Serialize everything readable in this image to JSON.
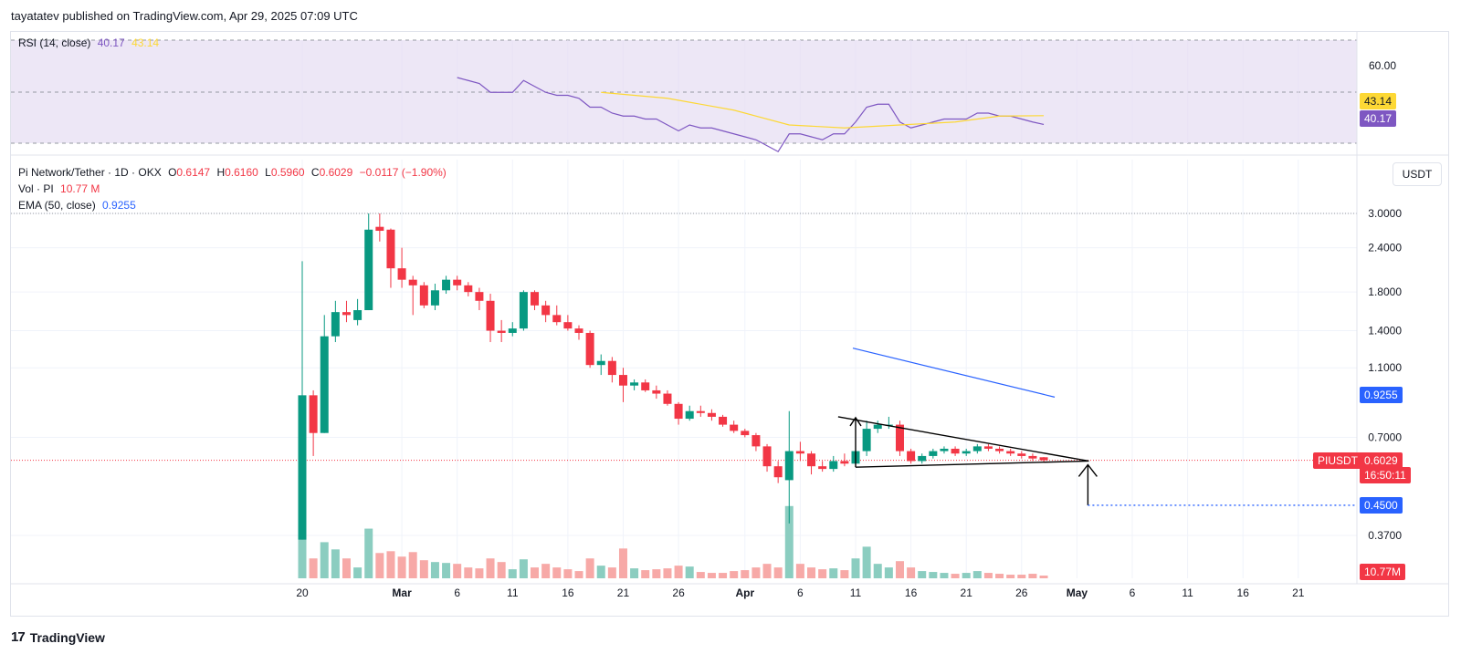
{
  "header": {
    "publisher": "tayatatev published on TradingView.com, Apr 29, 2025 07:09 UTC"
  },
  "rsi_legend": {
    "name": "RSI (14, close)",
    "rsi": "40.17",
    "ma": "43.14"
  },
  "price_legend": {
    "symbol": "Pi Network/Tether · 1D · OKX",
    "o_label": "O",
    "o": "0.6147",
    "h_label": "H",
    "h": "0.6160",
    "l_label": "L",
    "l": "0.5960",
    "c_label": "C",
    "c": "0.6029",
    "change": "−0.0117 (−1.90%)",
    "vol_label": "Vol · PI",
    "vol": "10.77 M",
    "ema_label": "EMA (50, close)",
    "ema": "0.9255"
  },
  "unit": "USDT",
  "footer": {
    "brand": "TradingView"
  },
  "colors": {
    "up": "#089981",
    "down": "#f23645",
    "ema": "#2962ff",
    "rsi": "#7e57c2",
    "rsi_ma": "#fdd835",
    "rsi_bg": "#ede7f6",
    "target": "#2962ff"
  },
  "chart_data": {
    "type": "candlestick",
    "symbol": "PIUSDT",
    "scale": "log",
    "price_ticks": [
      "3.0000",
      "2.4000",
      "1.8000",
      "1.4000",
      "1.1000",
      "0.7000",
      "0.3700"
    ],
    "rsi_ticks": [
      "60.00"
    ],
    "x_ticks": [
      "20",
      "Mar",
      "6",
      "11",
      "16",
      "21",
      "26",
      "Apr",
      "6",
      "11",
      "16",
      "21",
      "26",
      "May",
      "6",
      "11",
      "16",
      "21"
    ],
    "price_labels": {
      "ema": "0.9255",
      "symbol_tag": "PIUSDT",
      "last": "0.6029",
      "countdown": "16:50:11",
      "target": "0.4500",
      "volume": "10.77M",
      "rsi": "40.17",
      "rsi_ma": "43.14"
    },
    "candles": [
      {
        "date": "Feb 20",
        "o": 0.36,
        "h": 2.2,
        "l": 0.36,
        "c": 0.92,
        "v": 100
      },
      {
        "date": "Feb 21",
        "o": 0.92,
        "h": 0.95,
        "l": 0.62,
        "c": 0.72,
        "v": 22
      },
      {
        "date": "Feb 22",
        "o": 0.72,
        "h": 1.55,
        "l": 0.72,
        "c": 1.35,
        "v": 40
      },
      {
        "date": "Feb 23",
        "o": 1.35,
        "h": 1.7,
        "l": 1.3,
        "c": 1.58,
        "v": 32
      },
      {
        "date": "Feb 24",
        "o": 1.58,
        "h": 1.7,
        "l": 1.48,
        "c": 1.55,
        "v": 22
      },
      {
        "date": "Feb 25",
        "o": 1.5,
        "h": 1.72,
        "l": 1.45,
        "c": 1.6,
        "v": 12
      },
      {
        "date": "Feb 26",
        "o": 1.6,
        "h": 3.0,
        "l": 1.6,
        "c": 2.7,
        "v": 55
      },
      {
        "date": "Feb 27",
        "o": 2.75,
        "h": 3.0,
        "l": 2.5,
        "c": 2.68,
        "v": 28
      },
      {
        "date": "Feb 28",
        "o": 2.7,
        "h": 2.72,
        "l": 1.85,
        "c": 2.1,
        "v": 30
      },
      {
        "date": "Mar 1",
        "o": 2.1,
        "h": 2.4,
        "l": 1.85,
        "c": 1.95,
        "v": 24
      },
      {
        "date": "Mar 2",
        "o": 1.95,
        "h": 2.0,
        "l": 1.55,
        "c": 1.88,
        "v": 29
      },
      {
        "date": "Mar 3",
        "o": 1.88,
        "h": 1.92,
        "l": 1.62,
        "c": 1.65,
        "v": 20
      },
      {
        "date": "Mar 4",
        "o": 1.65,
        "h": 1.9,
        "l": 1.6,
        "c": 1.82,
        "v": 18
      },
      {
        "date": "Mar 5",
        "o": 1.82,
        "h": 2.0,
        "l": 1.78,
        "c": 1.95,
        "v": 17
      },
      {
        "date": "Mar 6",
        "o": 1.95,
        "h": 2.0,
        "l": 1.82,
        "c": 1.88,
        "v": 16
      },
      {
        "date": "Mar 7",
        "o": 1.88,
        "h": 1.92,
        "l": 1.75,
        "c": 1.8,
        "v": 12
      },
      {
        "date": "Mar 8",
        "o": 1.8,
        "h": 1.85,
        "l": 1.6,
        "c": 1.7,
        "v": 11
      },
      {
        "date": "Mar 9",
        "o": 1.7,
        "h": 1.78,
        "l": 1.3,
        "c": 1.4,
        "v": 22
      },
      {
        "date": "Mar 10",
        "o": 1.4,
        "h": 1.5,
        "l": 1.3,
        "c": 1.38,
        "v": 18
      },
      {
        "date": "Mar 11",
        "o": 1.38,
        "h": 1.48,
        "l": 1.35,
        "c": 1.42,
        "v": 10
      },
      {
        "date": "Mar 12",
        "o": 1.42,
        "h": 1.82,
        "l": 1.4,
        "c": 1.8,
        "v": 21
      },
      {
        "date": "Mar 13",
        "o": 1.8,
        "h": 1.82,
        "l": 1.6,
        "c": 1.65,
        "v": 12
      },
      {
        "date": "Mar 14",
        "o": 1.65,
        "h": 1.7,
        "l": 1.48,
        "c": 1.55,
        "v": 16
      },
      {
        "date": "Mar 15",
        "o": 1.55,
        "h": 1.65,
        "l": 1.45,
        "c": 1.48,
        "v": 12
      },
      {
        "date": "Mar 16",
        "o": 1.48,
        "h": 1.55,
        "l": 1.4,
        "c": 1.42,
        "v": 10
      },
      {
        "date": "Mar 17",
        "o": 1.42,
        "h": 1.45,
        "l": 1.32,
        "c": 1.38,
        "v": 8
      },
      {
        "date": "Mar 18",
        "o": 1.38,
        "h": 1.4,
        "l": 1.1,
        "c": 1.12,
        "v": 22
      },
      {
        "date": "Mar 19",
        "o": 1.12,
        "h": 1.2,
        "l": 1.05,
        "c": 1.15,
        "v": 14
      },
      {
        "date": "Mar 20",
        "o": 1.15,
        "h": 1.18,
        "l": 1.0,
        "c": 1.05,
        "v": 12
      },
      {
        "date": "Mar 21",
        "o": 1.05,
        "h": 1.1,
        "l": 0.88,
        "c": 0.98,
        "v": 33
      },
      {
        "date": "Mar 22",
        "o": 0.98,
        "h": 1.02,
        "l": 0.95,
        "c": 1.0,
        "v": 11
      },
      {
        "date": "Mar 23",
        "o": 1.0,
        "h": 1.02,
        "l": 0.94,
        "c": 0.95,
        "v": 9
      },
      {
        "date": "Mar 24",
        "o": 0.95,
        "h": 0.98,
        "l": 0.9,
        "c": 0.93,
        "v": 10
      },
      {
        "date": "Mar 25",
        "o": 0.93,
        "h": 0.95,
        "l": 0.86,
        "c": 0.87,
        "v": 11
      },
      {
        "date": "Mar 26",
        "o": 0.87,
        "h": 0.88,
        "l": 0.76,
        "c": 0.79,
        "v": 14
      },
      {
        "date": "Mar 27",
        "o": 0.79,
        "h": 0.86,
        "l": 0.78,
        "c": 0.83,
        "v": 13
      },
      {
        "date": "Mar 28",
        "o": 0.83,
        "h": 0.86,
        "l": 0.8,
        "c": 0.82,
        "v": 7
      },
      {
        "date": "Mar 29",
        "o": 0.82,
        "h": 0.84,
        "l": 0.78,
        "c": 0.8,
        "v": 6
      },
      {
        "date": "Mar 30",
        "o": 0.8,
        "h": 0.81,
        "l": 0.75,
        "c": 0.76,
        "v": 6
      },
      {
        "date": "Mar 31",
        "o": 0.76,
        "h": 0.78,
        "l": 0.72,
        "c": 0.73,
        "v": 8
      },
      {
        "date": "Apr 1",
        "o": 0.73,
        "h": 0.74,
        "l": 0.7,
        "c": 0.71,
        "v": 9
      },
      {
        "date": "Apr 2",
        "o": 0.71,
        "h": 0.72,
        "l": 0.64,
        "c": 0.66,
        "v": 12
      },
      {
        "date": "Apr 3",
        "o": 0.66,
        "h": 0.67,
        "l": 0.56,
        "c": 0.58,
        "v": 16
      },
      {
        "date": "Apr 4",
        "o": 0.58,
        "h": 0.6,
        "l": 0.52,
        "c": 0.54,
        "v": 12
      },
      {
        "date": "Apr 5",
        "o": 0.53,
        "h": 0.83,
        "l": 0.4,
        "c": 0.64,
        "v": 80
      },
      {
        "date": "Apr 6",
        "o": 0.64,
        "h": 0.68,
        "l": 0.6,
        "c": 0.63,
        "v": 16
      },
      {
        "date": "Apr 7",
        "o": 0.63,
        "h": 0.64,
        "l": 0.55,
        "c": 0.58,
        "v": 12
      },
      {
        "date": "Apr 8",
        "o": 0.58,
        "h": 0.6,
        "l": 0.56,
        "c": 0.57,
        "v": 10
      },
      {
        "date": "Apr 9",
        "o": 0.57,
        "h": 0.62,
        "l": 0.56,
        "c": 0.6,
        "v": 11
      },
      {
        "date": "Apr 10",
        "o": 0.6,
        "h": 0.63,
        "l": 0.58,
        "c": 0.59,
        "v": 9
      },
      {
        "date": "Apr 11",
        "o": 0.59,
        "h": 0.66,
        "l": 0.59,
        "c": 0.64,
        "v": 22
      },
      {
        "date": "Apr 12",
        "o": 0.64,
        "h": 0.78,
        "l": 0.62,
        "c": 0.74,
        "v": 35
      },
      {
        "date": "Apr 13",
        "o": 0.74,
        "h": 0.78,
        "l": 0.72,
        "c": 0.76,
        "v": 16
      },
      {
        "date": "Apr 14",
        "o": 0.76,
        "h": 0.8,
        "l": 0.74,
        "c": 0.76,
        "v": 12
      },
      {
        "date": "Apr 15",
        "o": 0.76,
        "h": 0.78,
        "l": 0.62,
        "c": 0.64,
        "v": 19
      },
      {
        "date": "Apr 16",
        "o": 0.64,
        "h": 0.65,
        "l": 0.59,
        "c": 0.6,
        "v": 12
      },
      {
        "date": "Apr 17",
        "o": 0.6,
        "h": 0.63,
        "l": 0.59,
        "c": 0.62,
        "v": 8
      },
      {
        "date": "Apr 18",
        "o": 0.62,
        "h": 0.65,
        "l": 0.61,
        "c": 0.64,
        "v": 7
      },
      {
        "date": "Apr 19",
        "o": 0.64,
        "h": 0.66,
        "l": 0.63,
        "c": 0.65,
        "v": 6
      },
      {
        "date": "Apr 20",
        "o": 0.65,
        "h": 0.66,
        "l": 0.62,
        "c": 0.63,
        "v": 5
      },
      {
        "date": "Apr 21",
        "o": 0.63,
        "h": 0.65,
        "l": 0.62,
        "c": 0.64,
        "v": 6
      },
      {
        "date": "Apr 22",
        "o": 0.64,
        "h": 0.67,
        "l": 0.63,
        "c": 0.66,
        "v": 8
      },
      {
        "date": "Apr 23",
        "o": 0.66,
        "h": 0.67,
        "l": 0.64,
        "c": 0.65,
        "v": 6
      },
      {
        "date": "Apr 24",
        "o": 0.65,
        "h": 0.66,
        "l": 0.63,
        "c": 0.64,
        "v": 5
      },
      {
        "date": "Apr 25",
        "o": 0.64,
        "h": 0.65,
        "l": 0.62,
        "c": 0.63,
        "v": 4
      },
      {
        "date": "Apr 26",
        "o": 0.63,
        "h": 0.64,
        "l": 0.61,
        "c": 0.62,
        "v": 4
      },
      {
        "date": "Apr 27",
        "o": 0.62,
        "h": 0.63,
        "l": 0.6,
        "c": 0.61,
        "v": 5
      },
      {
        "date": "Apr 28",
        "o": 0.615,
        "h": 0.616,
        "l": 0.596,
        "c": 0.603,
        "v": 3
      }
    ],
    "ema50": [
      {
        "date": "Apr 11",
        "value": 1.25
      },
      {
        "date": "Apr 28",
        "value": 0.9255
      }
    ],
    "rsi": [
      {
        "date": "Mar 6",
        "v": 56
      },
      {
        "date": "Mar 7",
        "v": 55
      },
      {
        "date": "Mar 8",
        "v": 54
      },
      {
        "date": "Mar 9",
        "v": 51
      },
      {
        "date": "Mar 10",
        "v": 51
      },
      {
        "date": "Mar 11",
        "v": 51
      },
      {
        "date": "Mar 12",
        "v": 55
      },
      {
        "date": "Mar 13",
        "v": 53
      },
      {
        "date": "Mar 14",
        "v": 51
      },
      {
        "date": "Mar 15",
        "v": 50
      },
      {
        "date": "Mar 16",
        "v": 50
      },
      {
        "date": "Mar 17",
        "v": 49
      },
      {
        "date": "Mar 18",
        "v": 46
      },
      {
        "date": "Mar 19",
        "v": 46
      },
      {
        "date": "Mar 20",
        "v": 44
      },
      {
        "date": "Mar 21",
        "v": 43
      },
      {
        "date": "Mar 22",
        "v": 43
      },
      {
        "date": "Mar 23",
        "v": 42
      },
      {
        "date": "Mar 24",
        "v": 42
      },
      {
        "date": "Mar 25",
        "v": 40
      },
      {
        "date": "Mar 26",
        "v": 38
      },
      {
        "date": "Mar 27",
        "v": 40
      },
      {
        "date": "Mar 28",
        "v": 39
      },
      {
        "date": "Mar 29",
        "v": 39
      },
      {
        "date": "Mar 30",
        "v": 38
      },
      {
        "date": "Mar 31",
        "v": 37
      },
      {
        "date": "Apr 1",
        "v": 36
      },
      {
        "date": "Apr 2",
        "v": 35
      },
      {
        "date": "Apr 3",
        "v": 33
      },
      {
        "date": "Apr 4",
        "v": 31
      },
      {
        "date": "Apr 5",
        "v": 37
      },
      {
        "date": "Apr 6",
        "v": 37
      },
      {
        "date": "Apr 7",
        "v": 36
      },
      {
        "date": "Apr 8",
        "v": 35
      },
      {
        "date": "Apr 9",
        "v": 37
      },
      {
        "date": "Apr 10",
        "v": 37
      },
      {
        "date": "Apr 11",
        "v": 41
      },
      {
        "date": "Apr 12",
        "v": 46
      },
      {
        "date": "Apr 13",
        "v": 47
      },
      {
        "date": "Apr 14",
        "v": 47
      },
      {
        "date": "Apr 15",
        "v": 41
      },
      {
        "date": "Apr 16",
        "v": 39
      },
      {
        "date": "Apr 17",
        "v": 40
      },
      {
        "date": "Apr 18",
        "v": 41
      },
      {
        "date": "Apr 19",
        "v": 42
      },
      {
        "date": "Apr 20",
        "v": 42
      },
      {
        "date": "Apr 21",
        "v": 42
      },
      {
        "date": "Apr 22",
        "v": 44
      },
      {
        "date": "Apr 23",
        "v": 44
      },
      {
        "date": "Apr 24",
        "v": 43
      },
      {
        "date": "Apr 25",
        "v": 43
      },
      {
        "date": "Apr 26",
        "v": 42
      },
      {
        "date": "Apr 27",
        "v": 41
      },
      {
        "date": "Apr 28",
        "v": 40.17
      }
    ],
    "rsi_ma": [
      {
        "date": "Mar 19",
        "v": 51
      },
      {
        "date": "Mar 25",
        "v": 49
      },
      {
        "date": "Mar 31",
        "v": 45
      },
      {
        "date": "Apr 5",
        "v": 40
      },
      {
        "date": "Apr 10",
        "v": 39
      },
      {
        "date": "Apr 15",
        "v": 40
      },
      {
        "date": "Apr 20",
        "v": 41
      },
      {
        "date": "Apr 24",
        "v": 43
      },
      {
        "date": "Apr 28",
        "v": 43.14
      }
    ],
    "annotations": {
      "triangle_top": [
        {
          "date": "Apr 10",
          "price": 0.8
        },
        {
          "date": "May 1",
          "price": 0.6
        }
      ],
      "triangle_bottom": [
        {
          "date": "Apr 11",
          "price": 0.58
        },
        {
          "date": "May 1",
          "price": 0.58
        }
      ],
      "arrow_target": {
        "date": "May 1",
        "from": 0.6,
        "to": 0.45
      }
    },
    "ylim": [
      0.3,
      3.0
    ]
  }
}
